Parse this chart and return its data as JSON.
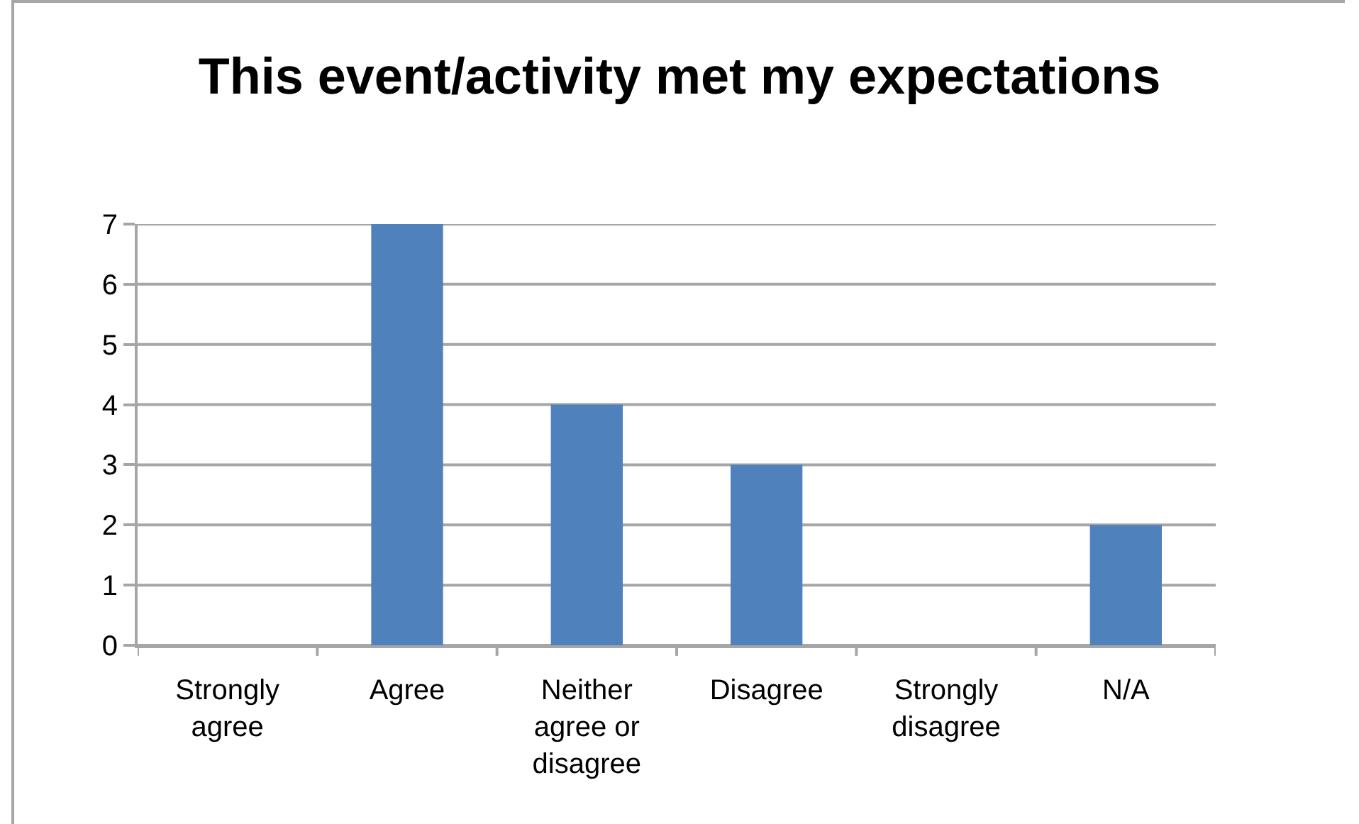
{
  "chart_data": {
    "type": "bar",
    "title": "This event/activity met my expectations",
    "categories": [
      "Strongly agree",
      "Agree",
      "Neither agree or disagree",
      "Disagree",
      "Strongly disagree",
      "N/A"
    ],
    "values": [
      0,
      7,
      4,
      3,
      0,
      2
    ],
    "color": "#4f81bd",
    "ylim": [
      0,
      7
    ],
    "yticks": [
      0,
      1,
      2,
      3,
      4,
      5,
      6,
      7
    ],
    "grid": "y"
  }
}
